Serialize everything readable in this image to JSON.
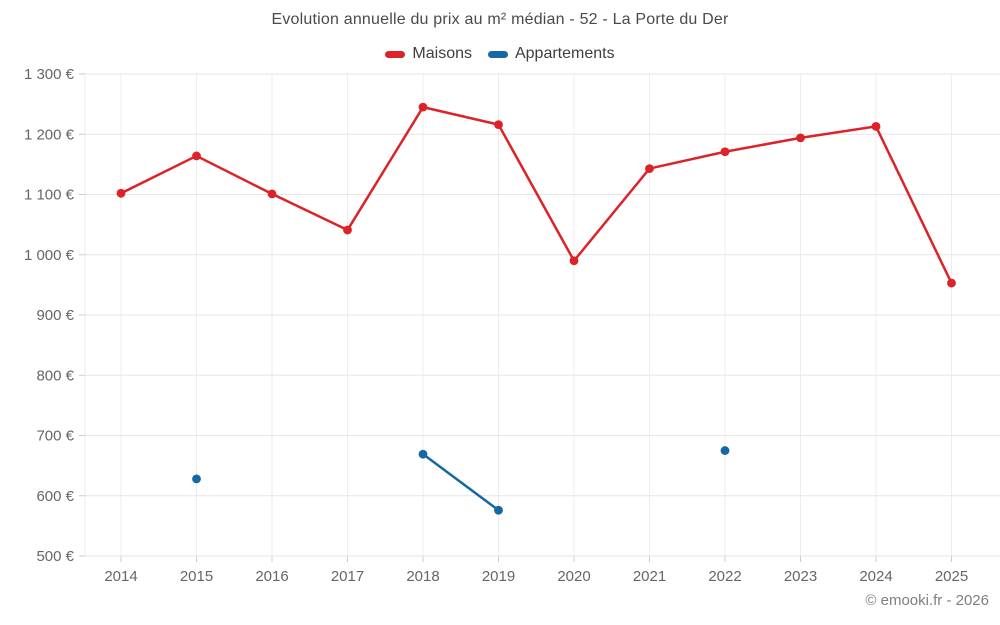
{
  "page": {
    "watermark": "© emooki.fr - 2026"
  },
  "legend": {
    "items": [
      {
        "label": "Maisons",
        "color": "#db2328"
      },
      {
        "label": "Appartements",
        "color": "#1569a0"
      }
    ]
  },
  "chart_data": {
    "type": "line",
    "title": "Evolution annuelle du prix au m² médian - 52 - La Porte du Der",
    "xlabel": "",
    "ylabel": "",
    "categories": [
      "2014",
      "2015",
      "2016",
      "2017",
      "2018",
      "2019",
      "2020",
      "2021",
      "2022",
      "2023",
      "2024",
      "2025"
    ],
    "series": [
      {
        "name": "Maisons",
        "color": "#db2328",
        "values": [
          1102,
          1164,
          1101,
          1041,
          1245,
          1216,
          990,
          1143,
          1171,
          1194,
          1213,
          953
        ]
      },
      {
        "name": "Appartements",
        "color": "#1569a0",
        "values": [
          null,
          628,
          null,
          null,
          669,
          576,
          null,
          null,
          675,
          null,
          null,
          null
        ]
      }
    ],
    "ylim": [
      500,
      1300
    ],
    "ytick_step": 100,
    "ytick_labels": [
      "500 €",
      "600 €",
      "700 €",
      "800 €",
      "900 €",
      "1 000 €",
      "1 100 €",
      "1 200 €",
      "1 300 €"
    ],
    "grid": true,
    "legend_position": "top",
    "colors": {
      "h_gridline": "#e6e6e6",
      "v_gridline": "#ededed",
      "tick": "#cccccc",
      "axis_label": "#666666"
    }
  }
}
